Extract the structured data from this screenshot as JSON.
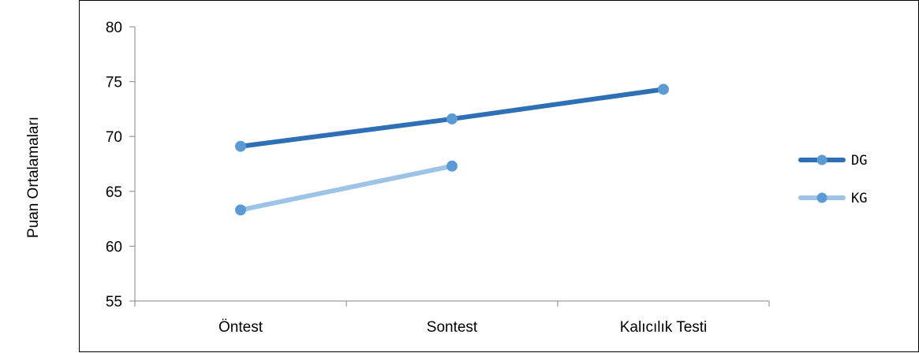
{
  "chart_data": {
    "type": "line",
    "title": "",
    "xlabel": "",
    "ylabel": "Puan Ortalamaları",
    "categories": [
      "Öntest",
      "Sontest",
      "Kalıcılık Testi"
    ],
    "ylim": [
      55,
      80
    ],
    "yticks": [
      55,
      60,
      65,
      70,
      75,
      80
    ],
    "grid": false,
    "legend_position": "right",
    "series": [
      {
        "name": "DG",
        "values": [
          69.1,
          71.6,
          74.3
        ],
        "color": "#2e6fb5",
        "marker_color": "#5b9bd5"
      },
      {
        "name": "KG",
        "values": [
          63.3,
          67.3,
          null
        ],
        "color": "#9dc3e6",
        "marker_color": "#5b9bd5"
      }
    ]
  }
}
